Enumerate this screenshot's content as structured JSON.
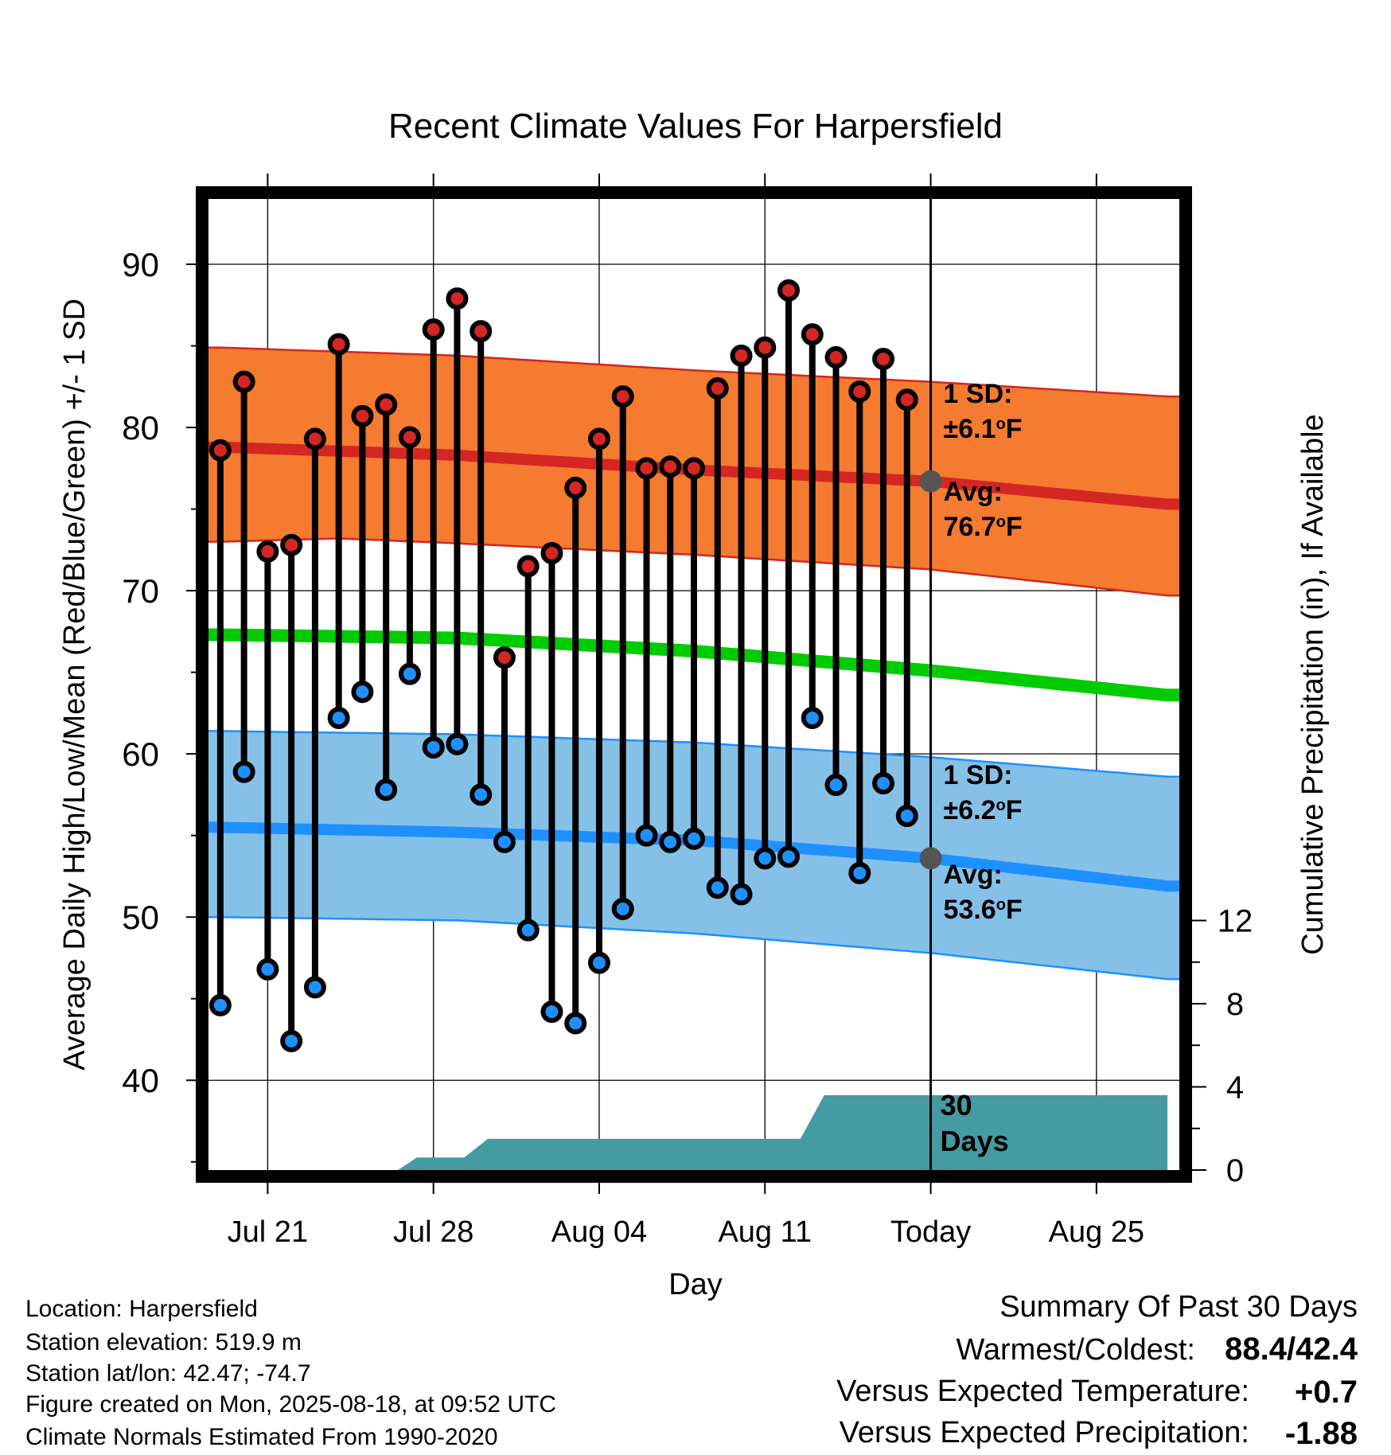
{
  "chart_data": {
    "type": "line",
    "title": "Recent Climate Values For Harpersfield",
    "xlabel": "Day",
    "ylabel_left": "Average Daily High/Low/Mean (Red/Blue/Green) +/- 1 SD",
    "ylabel_right": "Cumulative Precipitation (in), If Available",
    "ylim": [
      34.5,
      94
    ],
    "xlim": [
      -0.5,
      40.5
    ],
    "yticks_major": [
      "40",
      "50",
      "60",
      "70",
      "80",
      "90"
    ],
    "yticks_right": [
      "0",
      "4",
      "8",
      "12"
    ],
    "precip_ylim": [
      0,
      46.7
    ],
    "x_ticks": [
      {
        "x": 2,
        "label": "Jul 21"
      },
      {
        "x": 9,
        "label": "Jul 28"
      },
      {
        "x": 16,
        "label": "Aug 04"
      },
      {
        "x": 23,
        "label": "Aug 11"
      },
      {
        "x": 30,
        "label": "Today"
      },
      {
        "x": 37,
        "label": "Aug 25"
      }
    ],
    "today_x": 30,
    "highs": [
      78.6,
      82.8,
      72.4,
      72.8,
      79.3,
      85.1,
      80.7,
      81.4,
      79.4,
      86.0,
      87.9,
      85.9,
      65.9,
      71.5,
      72.3,
      76.3,
      79.3,
      81.9,
      77.5,
      77.6,
      77.5,
      82.4,
      84.4,
      84.9,
      88.4,
      85.7,
      84.3,
      82.2,
      84.2,
      81.7
    ],
    "lows": [
      44.6,
      58.9,
      46.8,
      42.4,
      45.7,
      62.2,
      63.8,
      57.8,
      64.9,
      60.4,
      60.6,
      57.5,
      54.6,
      49.2,
      44.2,
      43.5,
      47.2,
      50.5,
      55.0,
      54.6,
      54.8,
      51.8,
      51.4,
      53.6,
      53.7,
      62.2,
      58.1,
      52.7,
      58.2,
      56.2
    ],
    "normal_high": [
      [
        0,
        78.8
      ],
      [
        10,
        78.3
      ],
      [
        20,
        77.4
      ],
      [
        30,
        76.7
      ],
      [
        40,
        75.3
      ]
    ],
    "normal_high_sd_upper": [
      [
        0,
        84.9
      ],
      [
        10,
        84.4
      ],
      [
        20,
        83.5
      ],
      [
        30,
        82.8
      ],
      [
        40,
        81.9
      ]
    ],
    "normal_high_sd_lower": [
      [
        0,
        73.0
      ],
      [
        5,
        73.2
      ],
      [
        10,
        72.9
      ],
      [
        20,
        72.2
      ],
      [
        30,
        71.3
      ],
      [
        40,
        69.7
      ]
    ],
    "normal_mean": [
      [
        0,
        67.3
      ],
      [
        10,
        67.1
      ],
      [
        20,
        66.3
      ],
      [
        30,
        65.1
      ],
      [
        40,
        63.6
      ]
    ],
    "normal_low": [
      [
        0,
        55.5
      ],
      [
        10,
        55.2
      ],
      [
        20,
        54.7
      ],
      [
        30,
        53.6
      ],
      [
        40,
        51.9
      ]
    ],
    "normal_low_sd_upper": [
      [
        0,
        61.4
      ],
      [
        10,
        61.2
      ],
      [
        20,
        60.7
      ],
      [
        30,
        59.8
      ],
      [
        40,
        58.6
      ]
    ],
    "normal_low_sd_lower": [
      [
        0,
        50.0
      ],
      [
        10,
        49.8
      ],
      [
        20,
        49.0
      ],
      [
        30,
        47.8
      ],
      [
        40,
        46.2
      ]
    ],
    "precip_cumulative": [
      [
        7.5,
        0.0
      ],
      [
        8.3,
        0.6
      ],
      [
        10.3,
        0.6
      ],
      [
        11.3,
        1.5
      ],
      [
        24.5,
        1.5
      ],
      [
        25.5,
        3.6
      ],
      [
        40,
        3.6
      ]
    ],
    "precip_total_days": "30\nDays",
    "high_annotation": {
      "sd_label": "1 SD:",
      "sd_value": "±6.1",
      "avg_label": "Avg:",
      "avg_value": "76.7",
      "unit": "F",
      "degree": "o"
    },
    "low_annotation": {
      "sd_label": "1 SD:",
      "sd_value": "±6.2",
      "avg_label": "Avg:",
      "avg_value": "53.6",
      "unit": "F",
      "degree": "o"
    },
    "colors": {
      "high_band": "#f47b2f",
      "high_line": "#d42623",
      "high_edge": "#d42623",
      "mean_line": "#00cc00",
      "low_band": "#85c1e7",
      "low_line": "#1e90ff",
      "low_edge": "#1e90ff",
      "precip": "#469aa2",
      "annot": "#555555",
      "high_dot": "#d42623",
      "low_dot": "#1e90ff"
    }
  },
  "info": {
    "location": "Location: Harpersfield",
    "elevation": "Station elevation: 519.9 m",
    "latlon": "Station lat/lon: 42.47; -74.7",
    "created": "Figure created on Mon, 2025-08-18, at 09:52 UTC",
    "normals": "Climate Normals Estimated From 1990-2020"
  },
  "summary": {
    "title": "Summary Of Past 30 Days",
    "warm_cold_label": "Warmest/Coldest:",
    "warm_cold_value": "88.4/42.4",
    "temp_label": "Versus Expected Temperature:",
    "temp_value": "+0.7",
    "temp_color": "#d42623",
    "precip_label": "Versus Expected Precipitation:",
    "precip_value": "-1.88",
    "precip_color": "#a0522d"
  }
}
